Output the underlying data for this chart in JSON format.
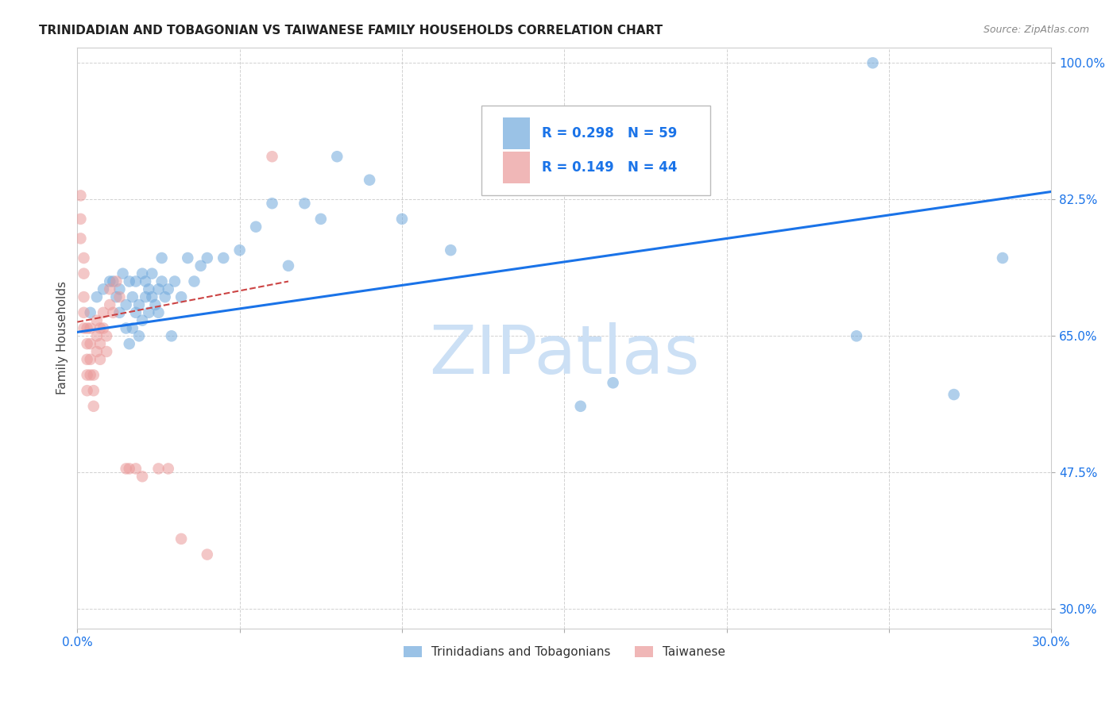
{
  "title": "TRINIDADIAN AND TOBAGONIAN VS TAIWANESE FAMILY HOUSEHOLDS CORRELATION CHART",
  "source": "Source: ZipAtlas.com",
  "ylabel": "Family Households",
  "xmin": 0.0,
  "xmax": 0.3,
  "ymin": 0.275,
  "ymax": 1.02,
  "yticks": [
    0.3,
    0.475,
    0.65,
    0.825,
    1.0
  ],
  "ytick_labels": [
    "30.0%",
    "47.5%",
    "65.0%",
    "82.5%",
    "100.0%"
  ],
  "xtick_positions": [
    0.0,
    0.05,
    0.1,
    0.15,
    0.2,
    0.25,
    0.3
  ],
  "xtick_labels": [
    "0.0%",
    "",
    "",
    "",
    "",
    "",
    "30.0%"
  ],
  "grid_color": "#cccccc",
  "blue_color": "#6fa8dc",
  "pink_color": "#ea9999",
  "trend_blue": "#1a73e8",
  "trend_pink": "#cc4444",
  "legend_R1": "R = 0.298",
  "legend_N1": "N = 59",
  "legend_R2": "R = 0.149",
  "legend_N2": "N = 44",
  "blue_scatter_x": [
    0.004,
    0.006,
    0.008,
    0.01,
    0.011,
    0.012,
    0.013,
    0.013,
    0.014,
    0.015,
    0.015,
    0.016,
    0.016,
    0.017,
    0.017,
    0.018,
    0.018,
    0.019,
    0.019,
    0.02,
    0.02,
    0.021,
    0.021,
    0.022,
    0.022,
    0.023,
    0.023,
    0.024,
    0.025,
    0.025,
    0.026,
    0.026,
    0.027,
    0.028,
    0.029,
    0.03,
    0.032,
    0.034,
    0.036,
    0.038,
    0.04,
    0.045,
    0.05,
    0.055,
    0.06,
    0.065,
    0.07,
    0.075,
    0.08,
    0.09,
    0.1,
    0.115,
    0.13,
    0.155,
    0.165,
    0.24,
    0.245,
    0.27,
    0.285
  ],
  "blue_scatter_y": [
    0.68,
    0.7,
    0.71,
    0.72,
    0.72,
    0.7,
    0.68,
    0.71,
    0.73,
    0.66,
    0.69,
    0.64,
    0.72,
    0.66,
    0.7,
    0.68,
    0.72,
    0.65,
    0.69,
    0.67,
    0.73,
    0.7,
    0.72,
    0.68,
    0.71,
    0.7,
    0.73,
    0.69,
    0.71,
    0.68,
    0.72,
    0.75,
    0.7,
    0.71,
    0.65,
    0.72,
    0.7,
    0.75,
    0.72,
    0.74,
    0.75,
    0.75,
    0.76,
    0.79,
    0.82,
    0.74,
    0.82,
    0.8,
    0.88,
    0.85,
    0.8,
    0.76,
    0.89,
    0.56,
    0.59,
    0.65,
    1.0,
    0.575,
    0.75
  ],
  "pink_scatter_x": [
    0.001,
    0.001,
    0.001,
    0.002,
    0.002,
    0.002,
    0.002,
    0.002,
    0.003,
    0.003,
    0.003,
    0.003,
    0.003,
    0.004,
    0.004,
    0.004,
    0.004,
    0.005,
    0.005,
    0.005,
    0.006,
    0.006,
    0.006,
    0.007,
    0.007,
    0.007,
    0.008,
    0.008,
    0.009,
    0.009,
    0.01,
    0.01,
    0.011,
    0.012,
    0.013,
    0.015,
    0.016,
    0.018,
    0.02,
    0.025,
    0.028,
    0.032,
    0.04,
    0.06
  ],
  "pink_scatter_y": [
    0.83,
    0.8,
    0.775,
    0.75,
    0.73,
    0.7,
    0.68,
    0.66,
    0.66,
    0.64,
    0.62,
    0.6,
    0.58,
    0.66,
    0.64,
    0.62,
    0.6,
    0.6,
    0.58,
    0.56,
    0.67,
    0.65,
    0.63,
    0.66,
    0.64,
    0.62,
    0.68,
    0.66,
    0.65,
    0.63,
    0.71,
    0.69,
    0.68,
    0.72,
    0.7,
    0.48,
    0.48,
    0.48,
    0.47,
    0.48,
    0.48,
    0.39,
    0.37,
    0.88
  ],
  "watermark": "ZIPatlas",
  "watermark_color": "#cce0f5",
  "background_color": "#ffffff"
}
